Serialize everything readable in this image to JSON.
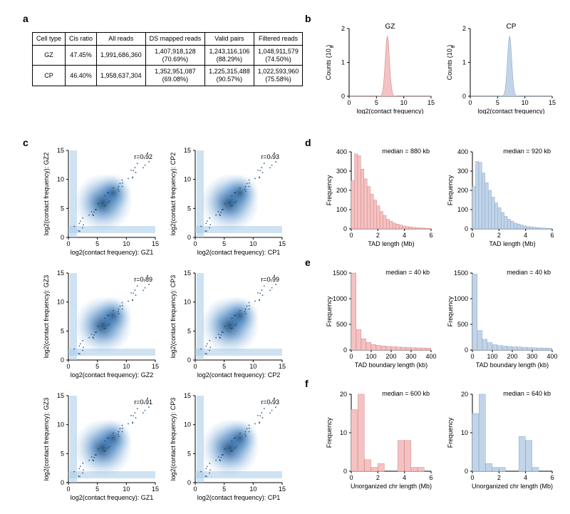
{
  "colors": {
    "gz_fill": "#f4c2c2",
    "gz_stroke": "#d48a8a",
    "cp_fill": "#c2d4e8",
    "cp_stroke": "#8aa8c8",
    "scatter_dark": "#0b3d6b",
    "scatter_mid": "#3a7bbf",
    "scatter_light": "#a7cbe8",
    "axis": "#000000",
    "bg": "#ffffff"
  },
  "panel_a": {
    "label": "a",
    "columns": [
      "Cell type",
      "Cis ratio",
      "All reads",
      "DS mapped reads",
      "Valid pairs",
      "Filtered reads"
    ],
    "rows": [
      [
        "GZ",
        "47.45%",
        "1,991,686,360",
        "1,407,918,128\n(70.69%)",
        "1,243,116,106\n(88.29%)",
        "1,048,911,579\n(74.50%)"
      ],
      [
        "CP",
        "46.40%",
        "1,958,637,304",
        "1,352,951,087\n(69.08%)",
        "1,225,315,488\n(90.57%)",
        "1,022,593,960\n(75.58%)"
      ]
    ]
  },
  "panel_b": {
    "label": "b",
    "xlabel": "log2(contact frequency)",
    "ylabel": "Counts (10^6)",
    "xlim": [
      0,
      15
    ],
    "ylim": [
      0,
      2
    ],
    "xticks": [
      0,
      5,
      10,
      15
    ],
    "yticks": [
      0,
      1,
      2
    ],
    "plots": [
      {
        "title": "GZ",
        "color_key": "gz",
        "peak_x": 7.0
      },
      {
        "title": "CP",
        "color_key": "cp",
        "peak_x": 7.2
      }
    ]
  },
  "panel_c": {
    "label": "c",
    "xlim": [
      0,
      15
    ],
    "ylim": [
      0,
      15
    ],
    "ticks": [
      0,
      5,
      10,
      15
    ],
    "plots": [
      {
        "xlab": "log2(contact frequency): GZ1",
        "ylab": "log2(contact frequency): GZ2",
        "r": "r=0.92"
      },
      {
        "xlab": "log2(contact frequency): CP1",
        "ylab": "log2(contact frequency): CP2",
        "r": "r=0.93"
      },
      {
        "xlab": "log2(contact frequency): GZ2",
        "ylab": "log2(contact frequency): GZ3",
        "r": "r=0.89"
      },
      {
        "xlab": "log2(contact frequency): CP2",
        "ylab": "log2(contact frequency): CP3",
        "r": "r=0.99"
      },
      {
        "xlab": "log2(contact frequency): GZ1",
        "ylab": "log2(contact frequency): GZ3",
        "r": "r=0.91"
      },
      {
        "xlab": "log2(contact frequency): CP1",
        "ylab": "log2(contact frequency): CP3",
        "r": "r=0.93"
      }
    ]
  },
  "panel_d": {
    "label": "d",
    "xlabel": "TAD length (Mb)",
    "ylabel": "Frequency",
    "xlim": [
      0,
      6
    ],
    "ylim": [
      0,
      400
    ],
    "xticks": [
      0,
      2,
      4,
      6
    ],
    "yticks": [
      0,
      100,
      200,
      300,
      400
    ],
    "plots": [
      {
        "median": "median =  880 kb",
        "color_key": "gz",
        "bars": [
          250,
          390,
          380,
          310,
          260,
          220,
          180,
          150,
          120,
          90,
          70,
          50,
          40,
          30,
          25,
          20,
          15,
          12,
          10,
          8,
          6,
          5,
          4,
          3,
          2
        ]
      },
      {
        "median": "median =  920 kb",
        "color_key": "cp",
        "bars": [
          220,
          350,
          345,
          290,
          240,
          200,
          165,
          135,
          110,
          85,
          65,
          50,
          40,
          30,
          25,
          20,
          15,
          12,
          10,
          8,
          6,
          5,
          4,
          3,
          2
        ]
      }
    ]
  },
  "panel_e": {
    "label": "e",
    "xlabel": "TAD boundary length (kb)",
    "ylabel": "Frequency",
    "xlim": [
      0,
      400
    ],
    "ylim": [
      0,
      1500
    ],
    "xticks": [
      0,
      100,
      200,
      300,
      400
    ],
    "yticks": [
      0,
      500,
      1000,
      1500
    ],
    "plots": [
      {
        "median": "median =  40 kb",
        "color_key": "gz",
        "bars": [
          1680,
          400,
          220,
          150,
          110,
          90,
          80,
          70,
          65,
          60,
          55,
          50,
          45,
          42,
          40,
          38
        ]
      },
      {
        "median": "median =  40 kb",
        "color_key": "cp",
        "bars": [
          1480,
          380,
          210,
          145,
          105,
          88,
          78,
          68,
          63,
          58,
          53,
          48,
          44,
          41,
          39,
          37
        ]
      }
    ]
  },
  "panel_f": {
    "label": "f",
    "xlabel": "Unorganized chr length (Mb)",
    "ylabel": "Frequency",
    "xlim": [
      0,
      6
    ],
    "ylim": [
      0,
      20
    ],
    "xticks": [
      0,
      2,
      4,
      6
    ],
    "yticks": [
      0,
      10,
      20
    ],
    "plots": [
      {
        "median": "median =  600 kb",
        "color_key": "gz",
        "bars": [
          16,
          21,
          3,
          1,
          2,
          0,
          0,
          8,
          8,
          1,
          1,
          0
        ]
      },
      {
        "median": "median =  640 kb",
        "color_key": "cp",
        "bars": [
          15,
          20,
          2,
          1,
          1,
          0,
          0,
          9,
          8,
          1,
          0,
          0
        ]
      }
    ]
  }
}
